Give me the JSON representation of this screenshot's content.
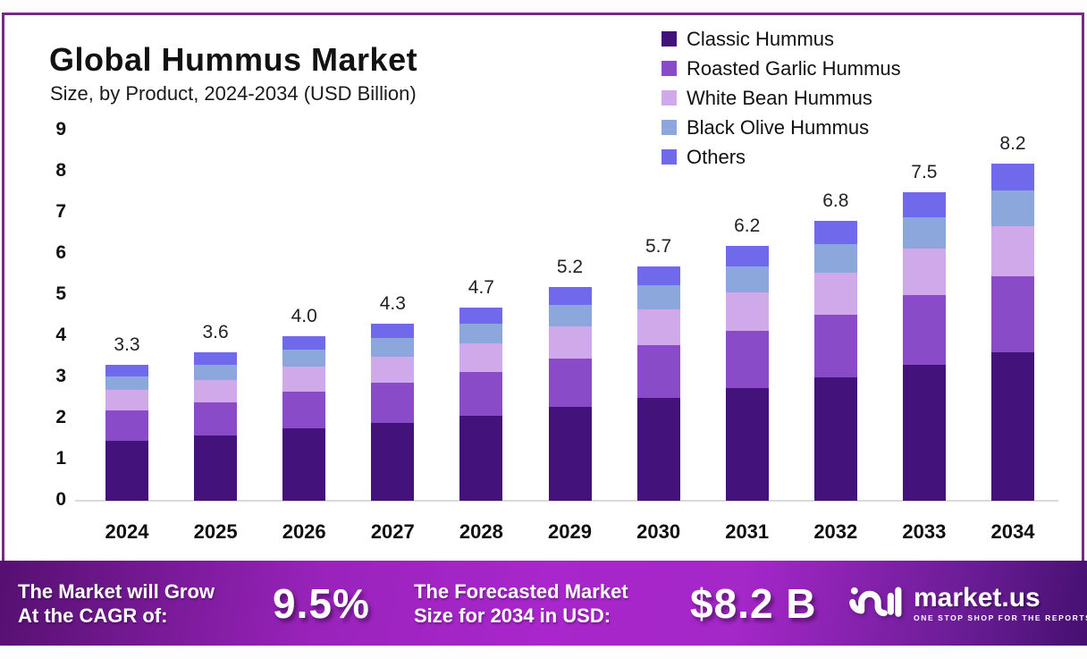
{
  "chart_data": {
    "type": "bar",
    "stacked": true,
    "title": "Global Hummus Market",
    "subtitle": "Size, by Product, 2024-2034 (USD Billion)",
    "categories": [
      "2024",
      "2025",
      "2026",
      "2027",
      "2028",
      "2029",
      "2030",
      "2031",
      "2032",
      "2033",
      "2034"
    ],
    "series": [
      {
        "name": "Classic Hummus",
        "color": "#44127b",
        "values": [
          1.45,
          1.58,
          1.76,
          1.89,
          2.07,
          2.29,
          2.51,
          2.73,
          2.99,
          3.3,
          3.6
        ]
      },
      {
        "name": "Roasted Garlic Hummus",
        "color": "#8a4bc8",
        "values": [
          0.74,
          0.81,
          0.9,
          0.97,
          1.06,
          1.17,
          1.28,
          1.4,
          1.53,
          1.69,
          1.85
        ]
      },
      {
        "name": "White Bean Hummus",
        "color": "#d0a9eb",
        "values": [
          0.5,
          0.54,
          0.6,
          0.65,
          0.7,
          0.78,
          0.86,
          0.93,
          1.02,
          1.13,
          1.23
        ]
      },
      {
        "name": "Black Olive Hummus",
        "color": "#8ba7db",
        "values": [
          0.33,
          0.37,
          0.41,
          0.44,
          0.48,
          0.53,
          0.58,
          0.64,
          0.7,
          0.77,
          0.86
        ]
      },
      {
        "name": "Others",
        "color": "#7069ec",
        "values": [
          0.28,
          0.3,
          0.33,
          0.35,
          0.39,
          0.43,
          0.47,
          0.5,
          0.56,
          0.61,
          0.66
        ]
      }
    ],
    "totals": [
      "3.3",
      "3.6",
      "4.0",
      "4.3",
      "4.7",
      "5.2",
      "5.7",
      "6.2",
      "6.8",
      "7.5",
      "8.2"
    ],
    "ylim": [
      0,
      9
    ],
    "yticks": [
      0,
      1,
      2,
      3,
      4,
      5,
      6,
      7,
      8,
      9
    ],
    "grid": false,
    "legend_position": "top-right"
  },
  "footer": {
    "cagr": {
      "label_line1": "The Market will Grow",
      "label_line2": "At the CAGR of:",
      "value": "9.5%"
    },
    "forecast": {
      "label_line1": "The Forecasted Market",
      "label_line2": "Size for 2034 in USD:",
      "value": "$8.2 B"
    },
    "brand": {
      "name": "market.us",
      "tagline": "ONE STOP SHOP FOR THE REPORTS",
      "icon": "market-us-squiggle-icon"
    }
  },
  "colors": {
    "frame_border": "#772a84",
    "baseline": "#d9d9d9",
    "banner_gradient": [
      "#551070",
      "#a826cb",
      "#451070"
    ]
  }
}
